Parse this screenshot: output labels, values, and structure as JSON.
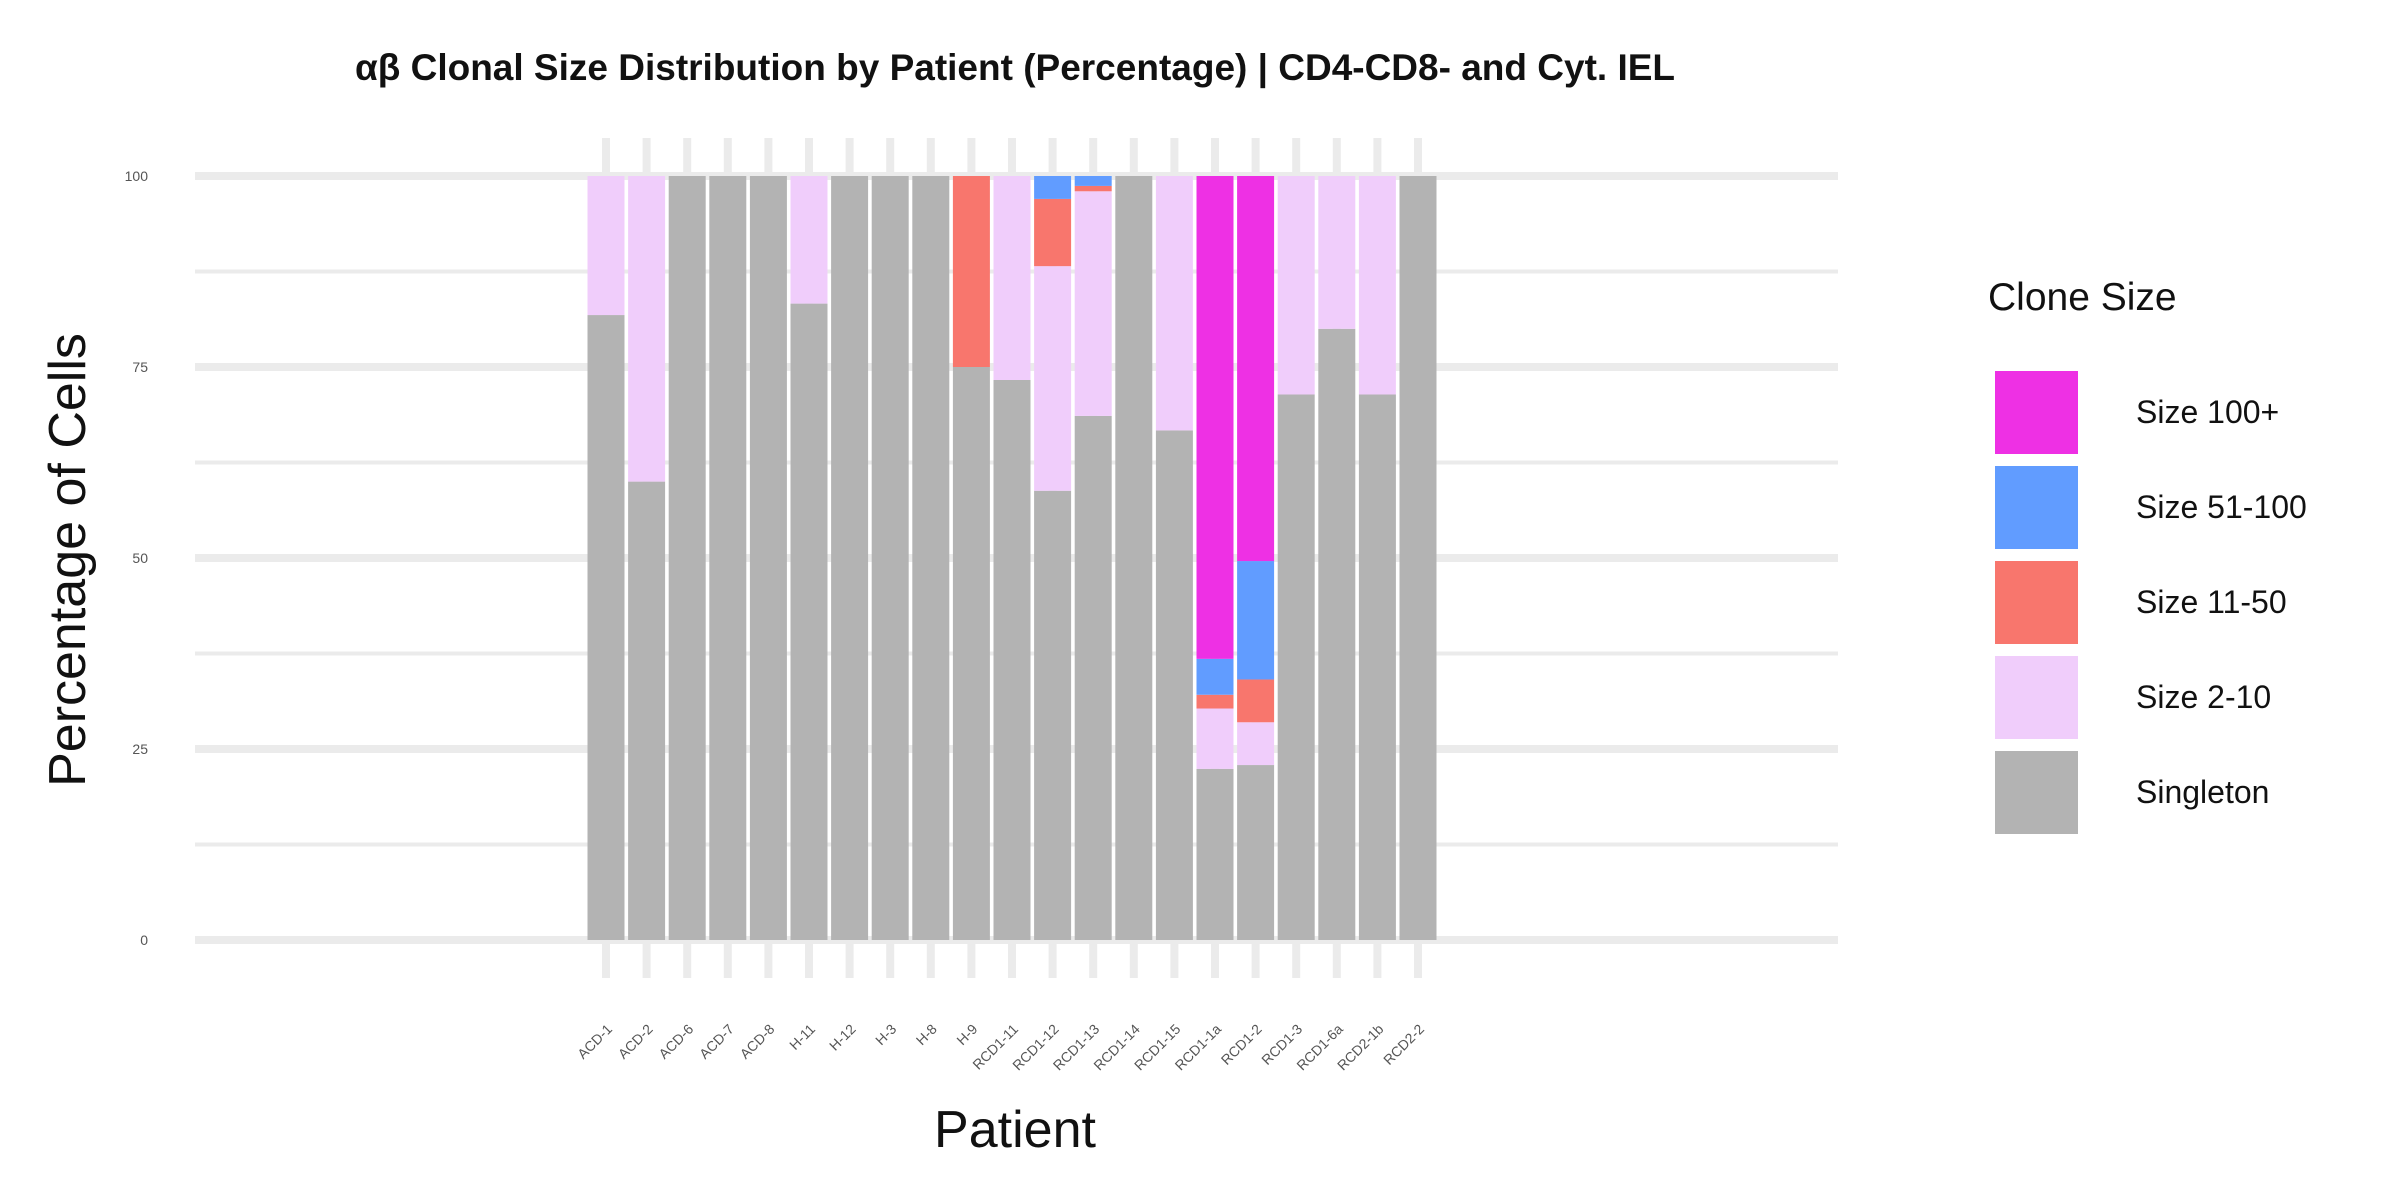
{
  "chart_data": {
    "type": "bar",
    "stacked": true,
    "title": "αβ Clonal Size Distribution by Patient (Percentage) | CD4-CD8- and Cyt. IEL",
    "xlabel": "Patient",
    "ylabel": "Percentage of Cells",
    "ylim": [
      0,
      100
    ],
    "yticks": [
      0,
      25,
      50,
      75,
      100
    ],
    "grid": true,
    "legend": {
      "title": "Clone Size",
      "position": "right",
      "order": [
        "Size 100+",
        "Size 51-100",
        "Size 11-50",
        "Size 2-10",
        "Singleton"
      ]
    },
    "categories": [
      "ACD-1",
      "ACD-2",
      "ACD-6",
      "ACD-7",
      "ACD-8",
      "H-11",
      "H-12",
      "H-3",
      "H-8",
      "H-9",
      "RCD1-11",
      "RCD1-12",
      "RCD1-13",
      "RCD1-14",
      "RCD1-15",
      "RCD1-1a",
      "RCD1-2",
      "RCD1-3",
      "RCD1-6a",
      "RCD2-1b",
      "RCD2-2"
    ],
    "series": [
      {
        "name": "Singleton",
        "color": "#b3b3b3",
        "values": [
          81.8,
          60,
          100,
          100,
          100,
          83.3,
          100,
          100,
          100,
          75,
          73.3,
          58.8,
          68.6,
          100,
          66.7,
          22.4,
          22.9,
          71.4,
          80,
          71.4,
          100
        ]
      },
      {
        "name": "Size 2-10",
        "color": "#f0cdfb",
        "values": [
          18.2,
          40,
          0,
          0,
          0,
          16.7,
          0,
          0,
          0,
          0,
          26.7,
          29.4,
          29.4,
          0,
          33.3,
          7.9,
          5.6,
          28.6,
          20,
          28.6,
          0
        ]
      },
      {
        "name": "Size 11-50",
        "color": "#f8766d",
        "values": [
          0,
          0,
          0,
          0,
          0,
          0,
          0,
          0,
          0,
          25,
          0,
          8.8,
          0.7,
          0,
          0,
          1.8,
          5.6,
          0,
          0,
          0,
          0
        ]
      },
      {
        "name": "Size 51-100",
        "color": "#619cff",
        "values": [
          0,
          0,
          0,
          0,
          0,
          0,
          0,
          0,
          0,
          0,
          0,
          3,
          1.3,
          0,
          0,
          4.7,
          15.5,
          0,
          0,
          0,
          0
        ]
      },
      {
        "name": "Size 100+",
        "color": "#ee30e4",
        "values": [
          0,
          0,
          0,
          0,
          0,
          0,
          0,
          0,
          0,
          0,
          0,
          0,
          0,
          0,
          0,
          63.2,
          50.4,
          0,
          0,
          0,
          0
        ]
      }
    ]
  }
}
